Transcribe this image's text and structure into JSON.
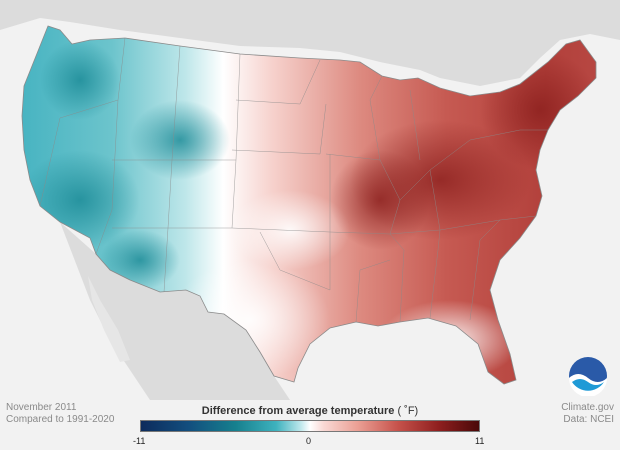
{
  "map": {
    "date_label": "November 2011",
    "baseline_label": "Compared to 1991-2020",
    "source_label": "Climate.gov",
    "data_label": "Data: NCEI",
    "logo_text": "NOAA"
  },
  "legend": {
    "title": "Difference from average temperature",
    "unit": "( ˚F)",
    "min_label": "-11",
    "mid_label": "0",
    "max_label": "11",
    "range": [
      -11,
      11
    ]
  },
  "colors": {
    "cold_extreme": "#0d2b5c",
    "cold": "#16808e",
    "neutral": "#ffffff",
    "warm": "#c6524b",
    "warm_extreme": "#4a0808",
    "land_background": "#dcdcdc",
    "ocean": "#f2f2f2"
  }
}
